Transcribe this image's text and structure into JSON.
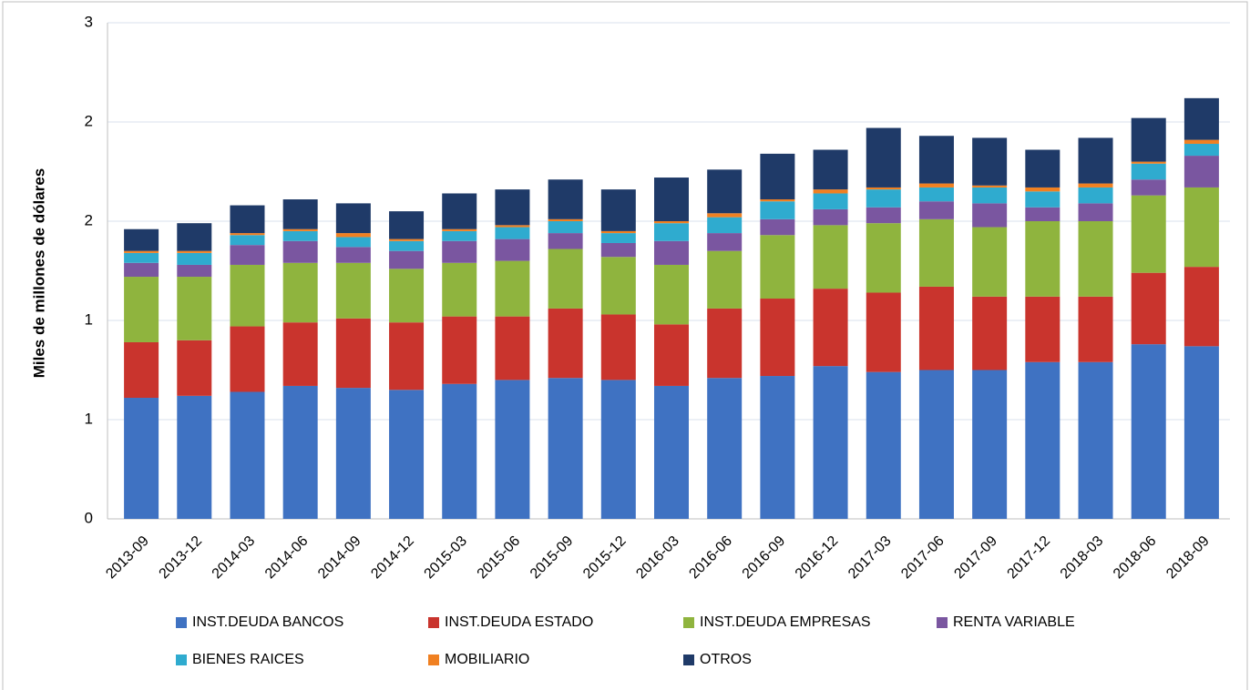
{
  "chart_data": {
    "type": "stacked_bar",
    "y_label": "Miles de millones de dólares",
    "categories": [
      "2013-09",
      "2013-12",
      "2014-03",
      "2014-06",
      "2014-09",
      "2014-12",
      "2015-03",
      "2015-06",
      "2015-09",
      "2015-12",
      "2016-03",
      "2016-06",
      "2016-09",
      "2016-12",
      "2017-03",
      "2017-06",
      "2017-09",
      "2017-12",
      "2018-03",
      "2018-06",
      "2018-09"
    ],
    "series": [
      {
        "name": "INST.DEUDA BANCOS",
        "color": "#3f72c2",
        "values": [
          0.61,
          0.62,
          0.64,
          0.67,
          0.66,
          0.65,
          0.68,
          0.7,
          0.71,
          0.7,
          0.67,
          0.71,
          0.72,
          0.77,
          0.74,
          0.75,
          0.75,
          0.79,
          0.79,
          0.88,
          0.87
        ]
      },
      {
        "name": "INST.DEUDA ESTADO",
        "color": "#c9342d",
        "values": [
          0.28,
          0.28,
          0.33,
          0.32,
          0.35,
          0.34,
          0.34,
          0.32,
          0.35,
          0.33,
          0.31,
          0.35,
          0.39,
          0.39,
          0.4,
          0.42,
          0.37,
          0.33,
          0.33,
          0.36,
          0.4
        ]
      },
      {
        "name": "INST.DEUDA EMPRESAS",
        "color": "#8fb43e",
        "values": [
          0.33,
          0.32,
          0.31,
          0.3,
          0.28,
          0.27,
          0.27,
          0.28,
          0.3,
          0.29,
          0.3,
          0.29,
          0.32,
          0.32,
          0.35,
          0.34,
          0.35,
          0.38,
          0.38,
          0.39,
          0.4
        ]
      },
      {
        "name": "RENTA VARIABLE",
        "color": "#7a56a0",
        "values": [
          0.07,
          0.06,
          0.1,
          0.11,
          0.08,
          0.09,
          0.11,
          0.11,
          0.08,
          0.07,
          0.12,
          0.09,
          0.08,
          0.08,
          0.08,
          0.09,
          0.12,
          0.07,
          0.09,
          0.08,
          0.16
        ]
      },
      {
        "name": "BIENES RAICES",
        "color": "#2fabcf",
        "values": [
          0.05,
          0.06,
          0.05,
          0.05,
          0.05,
          0.05,
          0.05,
          0.06,
          0.06,
          0.05,
          0.09,
          0.08,
          0.09,
          0.08,
          0.09,
          0.07,
          0.08,
          0.08,
          0.08,
          0.08,
          0.06
        ]
      },
      {
        "name": "MOBILIARIO",
        "color": "#f08021",
        "values": [
          0.01,
          0.01,
          0.01,
          0.01,
          0.02,
          0.01,
          0.01,
          0.01,
          0.01,
          0.01,
          0.01,
          0.02,
          0.01,
          0.02,
          0.01,
          0.02,
          0.01,
          0.02,
          0.02,
          0.01,
          0.02
        ]
      },
      {
        "name": "OTROS",
        "color": "#1f3a68",
        "values": [
          0.11,
          0.14,
          0.14,
          0.15,
          0.15,
          0.14,
          0.18,
          0.18,
          0.2,
          0.21,
          0.22,
          0.22,
          0.23,
          0.2,
          0.3,
          0.24,
          0.24,
          0.19,
          0.23,
          0.22,
          0.21
        ]
      }
    ],
    "ylim": [
      0,
      2.5
    ],
    "yticks": [
      0,
      {
        "value": 0.5,
        "label": "1"
      },
      1,
      {
        "value": 1.5,
        "label": "2"
      },
      2,
      {
        "value": 2.5,
        "label": "3"
      }
    ],
    "grid": true,
    "legend": "bottom"
  }
}
